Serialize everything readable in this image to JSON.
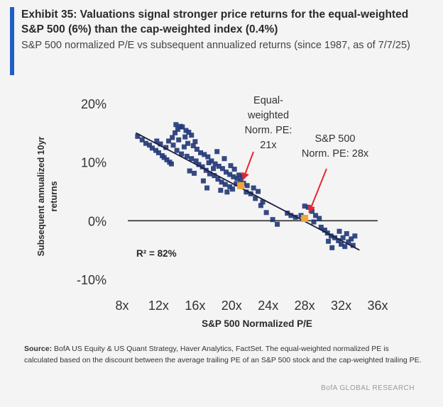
{
  "header": {
    "title": "Exhibit 35: Valuations signal stronger price returns for the equal-weighted S&P 500 (6%) than the cap-weighted index (0.4%)",
    "subtitle": "S&P 500 normalized P/E vs subsequent annualized returns (since 1987, as of 7/7/25)"
  },
  "chart_data": {
    "type": "scatter",
    "title": "",
    "xlabel": "S&P 500 Normalized P/E",
    "ylabel": "Subsequent annualized 10yr returns",
    "xlim": [
      8,
      36
    ],
    "ylim": [
      -10,
      20
    ],
    "x_ticks": [
      "8x",
      "12x",
      "16x",
      "20x",
      "24x",
      "28x",
      "32x",
      "36x"
    ],
    "y_ticks": [
      "20%",
      "10%",
      "0%",
      "-10%"
    ],
    "y_tick_values": [
      20,
      10,
      0,
      -10
    ],
    "x_tick_values": [
      8,
      12,
      16,
      20,
      24,
      28,
      32,
      36
    ],
    "zero_line": true,
    "r_squared_label": "R² = 82%",
    "trendline": {
      "x": [
        9.5,
        34
      ],
      "y": [
        15,
        -5
      ]
    },
    "series": [
      {
        "name": "observations",
        "color": "#243a78",
        "points": [
          [
            9.7,
            14.4
          ],
          [
            10.2,
            13.8
          ],
          [
            10.6,
            13.2
          ],
          [
            11.0,
            12.9
          ],
          [
            11.3,
            12.4
          ],
          [
            11.7,
            12.0
          ],
          [
            12.0,
            11.6
          ],
          [
            12.4,
            11.1
          ],
          [
            12.6,
            10.8
          ],
          [
            12.9,
            10.4
          ],
          [
            13.2,
            10.0
          ],
          [
            13.4,
            9.7
          ],
          [
            12.8,
            12.5
          ],
          [
            13.1,
            13.6
          ],
          [
            13.5,
            14.2
          ],
          [
            13.8,
            15.0
          ],
          [
            14.1,
            15.6
          ],
          [
            14.4,
            16.1
          ],
          [
            13.9,
            16.4
          ],
          [
            14.6,
            16.0
          ],
          [
            15.0,
            15.4
          ],
          [
            15.3,
            15.1
          ],
          [
            15.6,
            14.6
          ],
          [
            14.9,
            14.3
          ],
          [
            14.2,
            13.8
          ],
          [
            13.6,
            12.9
          ],
          [
            14.0,
            12.0
          ],
          [
            14.5,
            11.4
          ],
          [
            15.1,
            11.0
          ],
          [
            15.6,
            10.6
          ],
          [
            16.1,
            10.2
          ],
          [
            16.4,
            9.6
          ],
          [
            16.8,
            9.2
          ],
          [
            17.2,
            8.6
          ],
          [
            17.6,
            8.0
          ],
          [
            18.1,
            7.7
          ],
          [
            18.5,
            7.1
          ],
          [
            18.9,
            6.6
          ],
          [
            19.3,
            6.2
          ],
          [
            19.8,
            5.8
          ],
          [
            15.8,
            12.8
          ],
          [
            16.2,
            12.2
          ],
          [
            16.6,
            11.6
          ],
          [
            17.0,
            11.3
          ],
          [
            17.4,
            10.9
          ],
          [
            17.8,
            10.2
          ],
          [
            18.2,
            9.7
          ],
          [
            18.6,
            9.3
          ],
          [
            19.0,
            8.9
          ],
          [
            19.4,
            8.3
          ],
          [
            19.8,
            7.9
          ],
          [
            20.2,
            7.5
          ],
          [
            20.6,
            7.2
          ],
          [
            21.0,
            6.9
          ],
          [
            21.3,
            6.4
          ],
          [
            21.7,
            6.0
          ],
          [
            20.3,
            8.8
          ],
          [
            20.8,
            7.8
          ],
          [
            21.2,
            7.6
          ],
          [
            20.5,
            6.3
          ],
          [
            20.1,
            5.4
          ],
          [
            19.5,
            4.9
          ],
          [
            18.8,
            5.2
          ],
          [
            21.6,
            4.9
          ],
          [
            22.1,
            4.6
          ],
          [
            22.6,
            3.8
          ],
          [
            23.2,
            2.6
          ],
          [
            23.8,
            1.4
          ],
          [
            24.5,
            0.2
          ],
          [
            25.0,
            -0.6
          ],
          [
            16.9,
            6.8
          ],
          [
            17.3,
            5.6
          ],
          [
            15.4,
            8.5
          ],
          [
            15.9,
            8.1
          ],
          [
            22.4,
            5.6
          ],
          [
            22.9,
            5.0
          ],
          [
            23.4,
            3.2
          ],
          [
            26.1,
            1.3
          ],
          [
            26.5,
            0.9
          ],
          [
            27.0,
            0.6
          ],
          [
            27.6,
            0.9
          ],
          [
            28.0,
            2.5
          ],
          [
            28.4,
            2.3
          ],
          [
            28.8,
            1.6
          ],
          [
            29.2,
            0.9
          ],
          [
            29.6,
            0.4
          ],
          [
            29.0,
            -0.2
          ],
          [
            29.8,
            -1.1
          ],
          [
            30.2,
            -1.6
          ],
          [
            30.5,
            -2.1
          ],
          [
            30.9,
            -2.6
          ],
          [
            31.3,
            -2.9
          ],
          [
            31.7,
            -3.4
          ],
          [
            32.0,
            -4.0
          ],
          [
            32.4,
            -4.4
          ],
          [
            32.8,
            -3.6
          ],
          [
            33.1,
            -3.1
          ],
          [
            33.5,
            -2.6
          ],
          [
            32.6,
            -2.2
          ],
          [
            31.8,
            -1.8
          ],
          [
            31.0,
            -4.6
          ],
          [
            32.2,
            -2.9
          ],
          [
            33.3,
            -4.2
          ],
          [
            30.6,
            -3.5
          ],
          [
            11.8,
            13.6
          ],
          [
            12.2,
            13.1
          ],
          [
            14.8,
            12.6
          ],
          [
            15.2,
            13.2
          ],
          [
            16.0,
            13.5
          ],
          [
            18.4,
            11.8
          ],
          [
            19.2,
            10.6
          ],
          [
            19.9,
            9.4
          ],
          [
            17.5,
            9.9
          ],
          [
            18.0,
            8.9
          ]
        ]
      }
    ],
    "highlights": [
      {
        "label": "Equal-weighted Norm. PE: 21x",
        "x": 21,
        "y": 6,
        "color": "#f2a33a"
      },
      {
        "label": "S&P 500 Norm. PE: 28x",
        "x": 28,
        "y": 0.4,
        "color": "#f2a33a"
      }
    ],
    "annotations": [
      {
        "lines": [
          "Equal-",
          "weighted",
          "Norm. PE:",
          "21x"
        ],
        "arrow_color": "#e8262c"
      },
      {
        "lines": [
          "S&P 500",
          "Norm. PE: 28x"
        ],
        "arrow_color": "#e8262c"
      }
    ]
  },
  "footer": {
    "source_label": "Source:",
    "source_text": "BofA US Equity & US Quant Strategy, Haver Analytics, FactSet. The equal-weighted normalized PE is calculated based on the discount between the average trailing PE of an S&P 500 stock and the cap-weighted trailing PE.",
    "brand": "BofA GLOBAL RESEARCH"
  }
}
